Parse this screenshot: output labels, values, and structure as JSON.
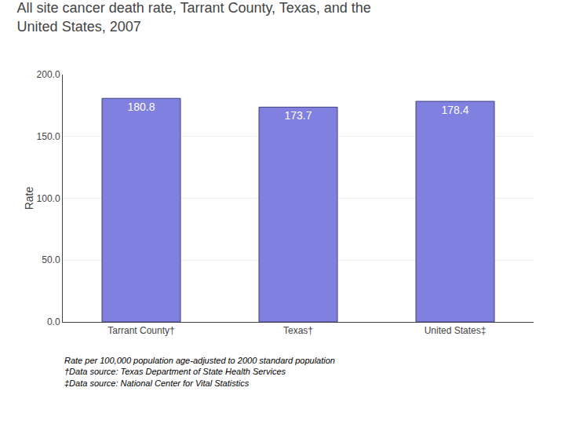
{
  "chart_data": {
    "type": "bar",
    "title": "All site cancer death rate, Tarrant County, Texas, and the\nUnited States, 2007",
    "categories": [
      "Tarrant County†",
      "Texas†",
      "United States‡"
    ],
    "values": [
      180.8,
      173.7,
      178.4
    ],
    "color": "#8080e0",
    "ylabel": "Rate",
    "ylim": [
      0,
      200
    ],
    "yticks": [
      {
        "value": 0,
        "label": "0.0"
      },
      {
        "value": 50,
        "label": "50.0"
      },
      {
        "value": 100,
        "label": "100.0"
      },
      {
        "value": 150,
        "label": "150.0"
      },
      {
        "value": 200,
        "label": "200.0"
      }
    ],
    "grid": true,
    "data_labels": true,
    "annotations": [
      "Rate per 100,000 population age-adjusted to 2000 standard population",
      "†Data source: Texas Department of State Health Services",
      "‡Data source: National Center for Vital Statistics"
    ]
  }
}
